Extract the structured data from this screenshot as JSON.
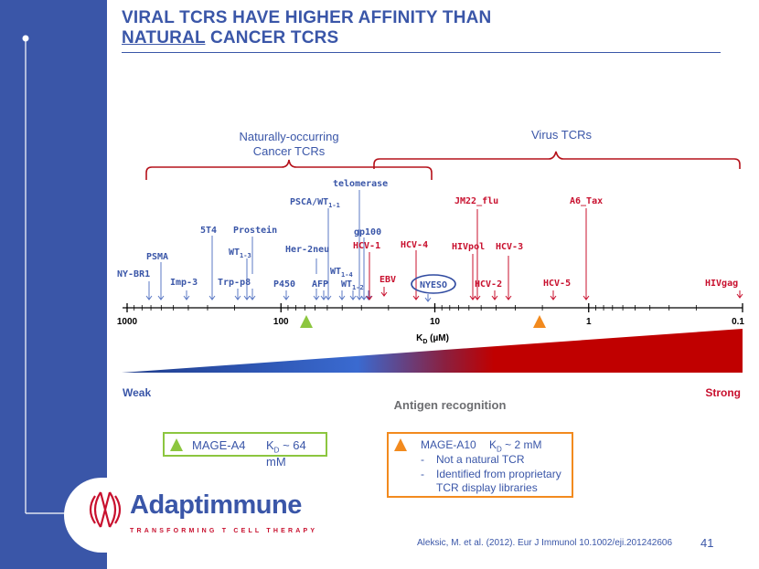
{
  "slide": {
    "title_line1": "VIRAL TCRS HAVE HIGHER AFFINITY THAN",
    "title_line2_underlined": "NATURAL",
    "title_line2_rest": " CANCER TCRS",
    "accent_color": "#3a56a8",
    "page_number": "41",
    "citation": "Aleksic, M. et al. (2012). Eur J Immunol 10.1002/eji.201242606"
  },
  "brackets": {
    "cancer_label_line1": "Naturally-occurring",
    "cancer_label_line2": "Cancer TCRs",
    "virus_label": "Virus TCRs",
    "color": "#b5121b"
  },
  "axis": {
    "label_main": "K",
    "label_sub": "D",
    "label_unit": " (µM)",
    "ticks": [
      "1000",
      "100",
      "10",
      "1",
      "0.1"
    ],
    "tick_values": [
      1000,
      100,
      10,
      1,
      0.1
    ],
    "scale": "log"
  },
  "cancer_tcrs": {
    "color": "#3a56a8",
    "labels": {
      "nybr1": "NY-BR1",
      "psma": "PSMA",
      "imp3": "Imp-3",
      "t5t4": "5T4",
      "trpp8": "Trp-p8",
      "prostein": "Prostein",
      "wt13_base": "WT",
      "wt13_sub": "1-3",
      "p450": "P450",
      "her2neu": "Her-2neu",
      "afp": "AFP",
      "psca_base": "PSCA/WT",
      "psca_sub": "1-1",
      "wt14_base": "WT",
      "wt14_sub": "1-4",
      "wt12_base": "WT",
      "wt12_sub": "1-2",
      "telomerase": "telomerase",
      "gp100": "gp100",
      "nyeso": "NYESO"
    }
  },
  "virus_tcrs": {
    "color": "#c8102e",
    "labels": {
      "hcv1": "HCV-1",
      "ebv": "EBV",
      "hcv4": "HCV-4",
      "jm22": "JM22_flu",
      "hivpol": "HIVpol",
      "hcv3": "HCV-3",
      "hcv2": "HCV-2",
      "hcv5": "HCV-5",
      "a6tax": "A6_Tax",
      "hivgag": "HIVgag"
    }
  },
  "recognition": {
    "weak_label": "Weak",
    "strong_label": "Strong",
    "caption": "Antigen recognition",
    "weak_color": "#3a56a8",
    "strong_color": "#c8102e"
  },
  "legend": {
    "a4_name": "MAGE-A4",
    "a4_kd_main": "K",
    "a4_kd_sub": "D",
    "a4_kd_value": " ~ 64 mM",
    "a4_color": "#8cc63f",
    "a10_name": "MAGE-A10",
    "a10_kd_main": "K",
    "a10_kd_sub": "D",
    "a10_kd_value": " ~  2 mM",
    "a10_color": "#f28a1e",
    "a10_bullets": [
      "Not a natural TCR",
      "Identified from proprietary TCR display libraries"
    ],
    "bullet_dash": "-"
  },
  "logo": {
    "name": "Adaptimmune",
    "tagline": "TRANSFORMING T CELL THERAPY",
    "name_color": "#3a56a8",
    "mark_color": "#c8102e"
  }
}
